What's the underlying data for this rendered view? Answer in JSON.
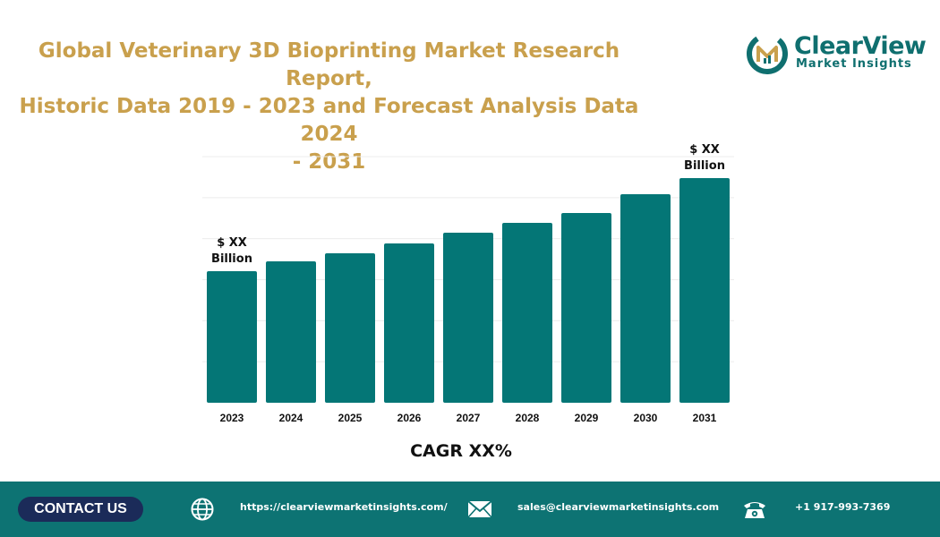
{
  "header": {
    "title_lines": [
      "Global Veterinary 3D Bioprinting Market Research Report,",
      "Historic Data 2019 - 2023 and Forecast Analysis Data 2024",
      "- 2031"
    ]
  },
  "logo": {
    "name": "ClearView",
    "subtitle": "Market Insights"
  },
  "colors": {
    "bar": "#047676",
    "title": "#c9a04d",
    "footer": "#0d7373",
    "button": "#1b2b59"
  },
  "chart_data": {
    "type": "bar",
    "categories": [
      "2023",
      "2024",
      "2025",
      "2026",
      "2027",
      "2028",
      "2029",
      "2030",
      "2031"
    ],
    "values": [
      147,
      158,
      167,
      178,
      190,
      201,
      212,
      233,
      251
    ],
    "ylim": [
      0,
      275
    ],
    "grid": true,
    "annotations": [
      {
        "category": "2023",
        "lines": [
          "$ XX",
          "Billion"
        ]
      },
      {
        "category": "2031",
        "lines": [
          "$ XX",
          "Billion"
        ]
      }
    ],
    "cagr_label": "CAGR XX%"
  },
  "footer": {
    "contact_label": "CONTACT US",
    "website": "https://clearviewmarketinsights.com/",
    "email": "sales@clearviewmarketinsights.com",
    "phone": "+1 917-993-7369",
    "icons": [
      "globe-icon",
      "envelope-icon",
      "phone-icon"
    ]
  }
}
